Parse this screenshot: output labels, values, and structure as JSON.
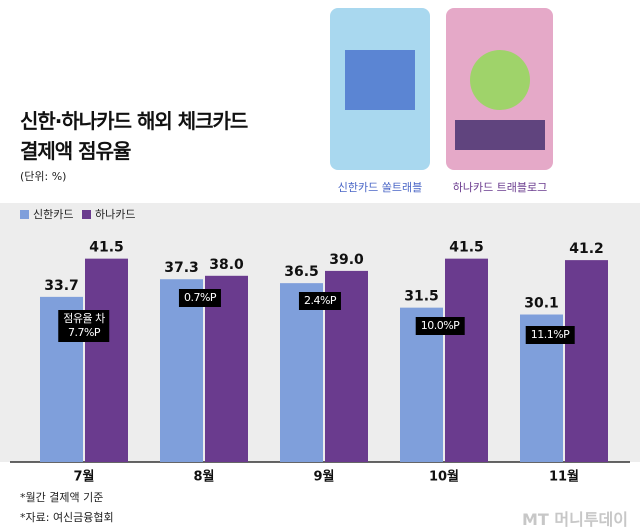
{
  "chart_data": {
    "type": "bar",
    "title": "신한·하나카드 해외 체크카드\n결제액 점유율",
    "unit": "(단위: %)",
    "categories": [
      "7월",
      "8월",
      "9월",
      "10월",
      "11월"
    ],
    "series": [
      {
        "name": "신한카드",
        "color": "#7f9fdb",
        "values": [
          33.7,
          37.3,
          36.5,
          31.5,
          30.1
        ]
      },
      {
        "name": "하나카드",
        "color": "#6a3b8e",
        "values": [
          41.5,
          38,
          39,
          41.5,
          41.2
        ],
        "value_labels": [
          "41.5",
          "38.0",
          "39.0",
          "41.5",
          "41.2"
        ]
      }
    ],
    "annotations": [
      "점유율 차\n7.7%P",
      "0.7%P",
      "2.4%P",
      "10.0%P",
      "11.1%P"
    ],
    "notes": [
      "*월간 결제액 기준",
      "*자료: 여신금융협회"
    ]
  },
  "cards": [
    "신한카드 쏠트래블",
    "하나카드 트래블로그"
  ],
  "credit": "MT 머니투데이"
}
